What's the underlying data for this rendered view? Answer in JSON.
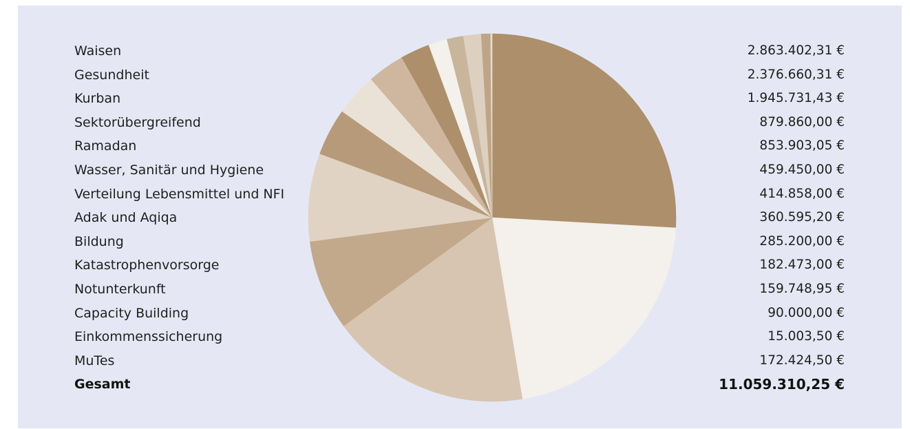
{
  "chart_data": {
    "type": "pie",
    "currency_suffix": " €",
    "slices": [
      {
        "label": "Waisen",
        "value": 2863402.31,
        "display": "2.863.402,31 €",
        "color": "#ad8f6c"
      },
      {
        "label": "Gesundheit",
        "value": 2376660.31,
        "display": "2.376.660,31 €",
        "color": "#f4f0eb"
      },
      {
        "label": "Kurban",
        "value": 1945731.43,
        "display": "1.945.731,43 €",
        "color": "#d8c5b1"
      },
      {
        "label": "Sektorübergreifend",
        "value": 879860.0,
        "display": "879.860,00 €",
        "color": "#c2a98b"
      },
      {
        "label": "Ramadan",
        "value": 853903.05,
        "display": "853.903,05 €",
        "color": "#e1d3c3"
      },
      {
        "label": "Wasser, Sanitär und Hygiene",
        "value": 459450.0,
        "display": "459.450,00 €",
        "color": "#b79a79"
      },
      {
        "label": "Verteilung Lebensmittel und NFI",
        "value": 414858.0,
        "display": "414.858,00 €",
        "color": "#ebe2d7"
      },
      {
        "label": "Adak und Aqiqa",
        "value": 360595.2,
        "display": "360.595,20 €",
        "color": "#cfb79f"
      },
      {
        "label": "Bildung",
        "value": 285200.0,
        "display": "285.200,00 €",
        "color": "#ad8f6c"
      },
      {
        "label": "Katastrophenvorsorge",
        "value": 182473.0,
        "display": "182.473,00 €",
        "color": "#f4f0eb"
      },
      {
        "label": "Notunterkunft",
        "value": 159748.95,
        "display": "159.748,95 €",
        "color": "#d8c5b1"
      },
      {
        "label": "Capacity Building",
        "value": 90000.0,
        "display": "90.000,00 €",
        "color": "#c2a98b"
      },
      {
        "label": "Einkommenssicherung",
        "value": 15003.5,
        "display": "15.003,50 €",
        "color": "#e1d3c3"
      },
      {
        "label": "MuTes",
        "value": 172424.5,
        "display": "172.424,50 €",
        "color": "#b79a79"
      }
    ],
    "pie_order": [
      0,
      1,
      2,
      3,
      4,
      5,
      6,
      7,
      8,
      9,
      10,
      13,
      11,
      12
    ],
    "pie_colors": [
      "#ad8f6c",
      "#f4f0eb",
      "#d8c5b1",
      "#c2a98b",
      "#e1d3c3",
      "#b79a79",
      "#ebe2d7",
      "#cfb79f",
      "#ad8f6c",
      "#f4f0eb",
      "#c9b49c",
      "#ddd0c0",
      "#bfa587",
      "#e6dcd0"
    ],
    "total": {
      "label": "Gesamt",
      "display": "11.059.310,25 €",
      "value": 11059310.25
    }
  }
}
